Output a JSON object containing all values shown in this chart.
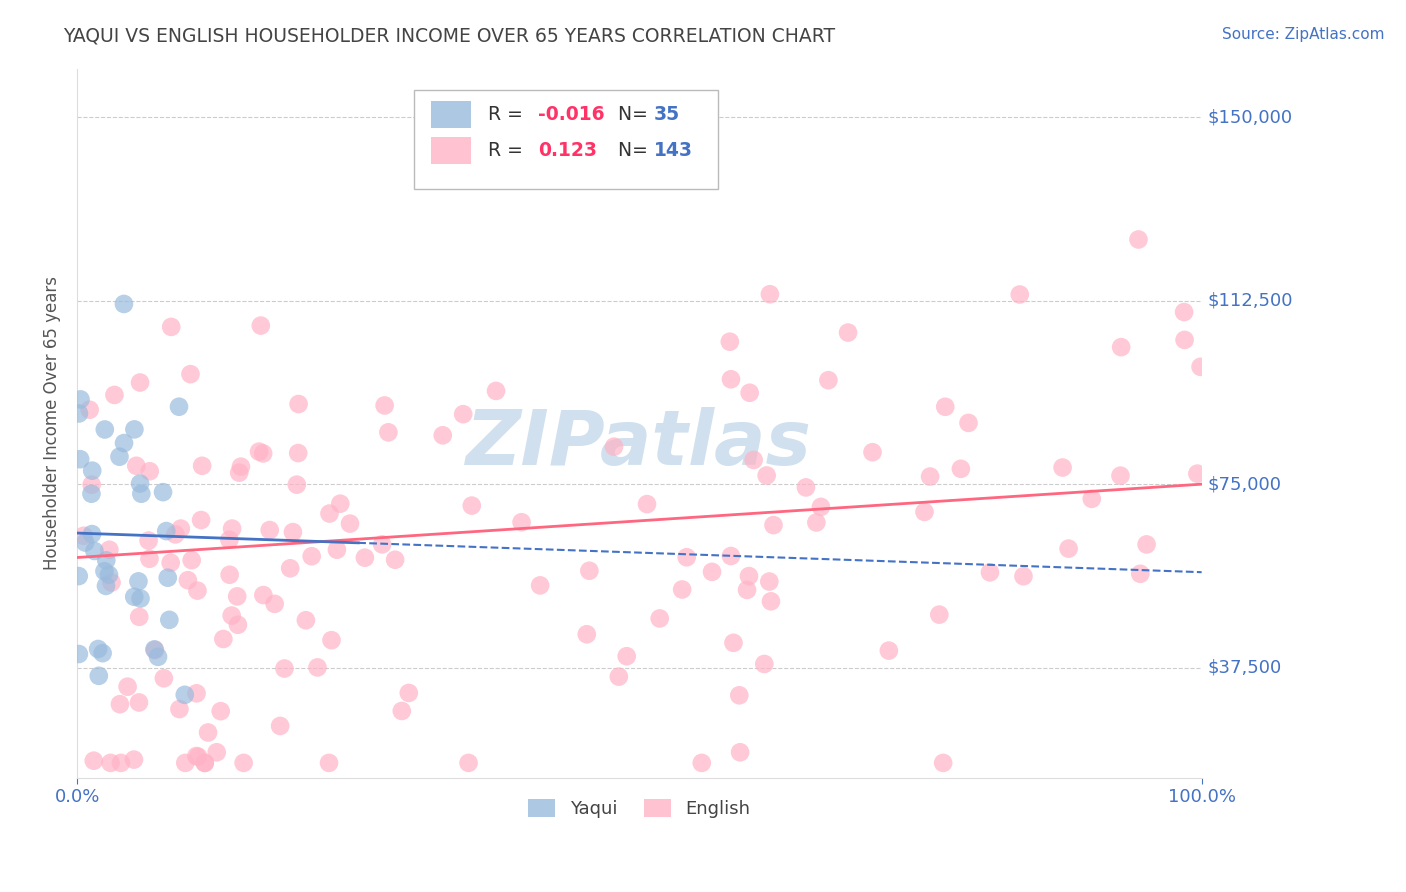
{
  "title": "YAQUI VS ENGLISH HOUSEHOLDER INCOME OVER 65 YEARS CORRELATION CHART",
  "source": "Source: ZipAtlas.com",
  "ylabel": "Householder Income Over 65 years",
  "xlim": [
    0.0,
    1.0
  ],
  "ylim": [
    15000,
    160000
  ],
  "yticks": [
    37500,
    75000,
    112500,
    150000
  ],
  "ytick_labels": [
    "$37,500",
    "$75,000",
    "$112,500",
    "$150,000"
  ],
  "xtick_labels": [
    "0.0%",
    "100.0%"
  ],
  "yaqui_R": -0.016,
  "yaqui_N": 35,
  "english_R": 0.123,
  "english_N": 143,
  "background_color": "#ffffff",
  "grid_color": "#cccccc",
  "title_color": "#444444",
  "axis_label_color": "#555555",
  "tick_color": "#4472C4",
  "yaqui_color": "#99BBDD",
  "english_color": "#FFB3C6",
  "yaqui_line_color": "#4472C4",
  "english_line_color": "#FF6680",
  "watermark_color": "#C8D8E8"
}
